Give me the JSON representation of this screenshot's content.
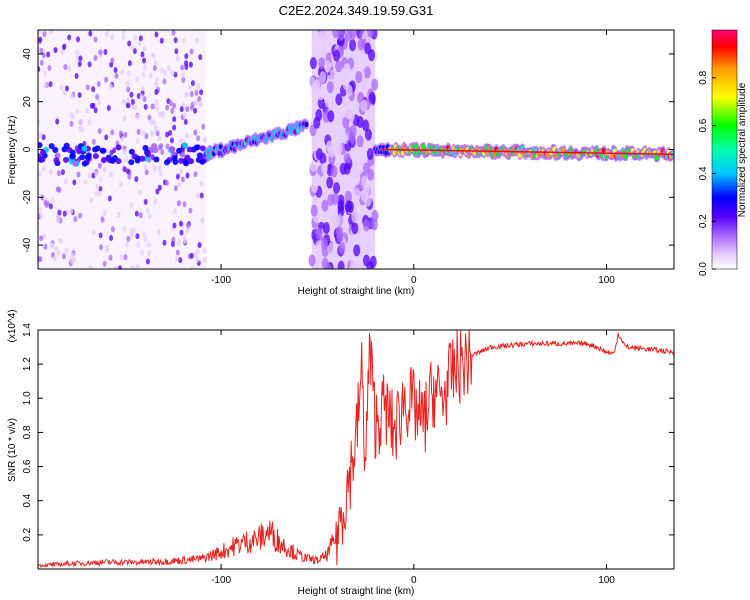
{
  "title": "C2E2.2024.349.19.59.G31",
  "chart_data": [
    {
      "type": "heatmap",
      "xlabel": "Height of straight line (km)",
      "ylabel": "Frequency (Hz)",
      "xlim": [
        -195,
        135
      ],
      "ylim": [
        -50,
        50
      ],
      "x_ticks": [
        -100,
        0,
        100
      ],
      "y_ticks": [
        -40,
        -20,
        0,
        20,
        40
      ],
      "colorbar": {
        "label": "Normalized spectral amplitude",
        "range": [
          0,
          1
        ],
        "ticks": [
          0.0,
          0.2,
          0.4,
          0.6,
          0.8
        ],
        "colors": [
          "#ffffff",
          "#cc99ff",
          "#6600ff",
          "#0000ff",
          "#00ffff",
          "#00ff00",
          "#ffff00",
          "#ff9900",
          "#ff0000",
          "#ff0066"
        ]
      },
      "regions": [
        {
          "x": [
            -195,
            -108
          ],
          "description": "scattered noise",
          "center_freq": -2,
          "peak_amplitude": 0.3
        },
        {
          "x": [
            -108,
            -55
          ],
          "center_freq_start": -2,
          "center_freq_end": 10,
          "peak_amplitude": 0.5
        },
        {
          "x": [
            -53,
            -20
          ],
          "description": "broadband noise",
          "peak_amplitude": 0.3
        },
        {
          "x": [
            -20,
            135
          ],
          "center_freq_start": 0,
          "center_freq_end": -2,
          "peak_amplitude": 0.98
        }
      ]
    },
    {
      "type": "line",
      "xlabel": "Height of straight line (km)",
      "ylabel": "SNR (10 * v/v)",
      "y_multiplier": "(x10^4)",
      "xlim": [
        -195,
        135
      ],
      "ylim": [
        0,
        1.4
      ],
      "x_ticks": [
        -100,
        0,
        100
      ],
      "y_ticks": [
        0.2,
        0.4,
        0.6,
        0.8,
        1.0,
        1.2,
        1.4
      ],
      "series": [
        {
          "color": "#e8221e",
          "x": [
            -195,
            -180,
            -160,
            -140,
            -120,
            -110,
            -100,
            -90,
            -80,
            -75,
            -70,
            -65,
            -60,
            -55,
            -50,
            -45,
            -40,
            -35,
            -30,
            -27,
            -25,
            -23,
            -20,
            -15,
            -10,
            -5,
            0,
            5,
            10,
            15,
            20,
            25,
            30,
            40,
            50,
            60,
            70,
            80,
            90,
            95,
            100,
            104,
            106,
            110,
            120,
            135
          ],
          "y": [
            0.02,
            0.03,
            0.04,
            0.04,
            0.05,
            0.06,
            0.1,
            0.15,
            0.18,
            0.22,
            0.16,
            0.12,
            0.08,
            0.06,
            0.05,
            0.08,
            0.2,
            0.45,
            0.75,
            1.15,
            0.6,
            1.3,
            0.85,
            0.95,
            0.8,
            1.0,
            0.95,
            0.85,
            1.05,
            1.0,
            1.15,
            1.2,
            1.25,
            1.3,
            1.31,
            1.32,
            1.32,
            1.32,
            1.32,
            1.3,
            1.27,
            1.26,
            1.38,
            1.3,
            1.29,
            1.27
          ]
        }
      ]
    }
  ]
}
